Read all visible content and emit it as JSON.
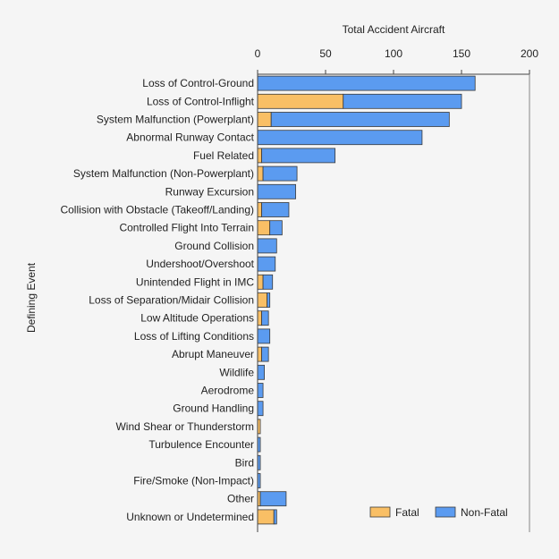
{
  "chart_data": {
    "type": "bar",
    "orientation": "horizontal",
    "stacked": true,
    "xlabel": "Total Accident Aircraft",
    "ylabel": "Defining Event",
    "xlim": [
      0,
      200
    ],
    "xticks": [
      0,
      50,
      100,
      150,
      200
    ],
    "x_axis_position": "top",
    "grid": false,
    "legend_position": "bottom-right",
    "categories": [
      "Loss of Control-Ground",
      "Loss of Control-Inflight",
      "System Malfunction (Powerplant)",
      "Abnormal Runway Contact",
      "Fuel Related",
      "System Malfunction (Non-Powerplant)",
      "Runway Excursion",
      "Collision with Obstacle (Takeoff/Landing)",
      "Controlled Flight Into Terrain",
      "Ground Collision",
      "Undershoot/Overshoot",
      "Unintended Flight in IMC",
      "Loss of Separation/Midair Collision",
      "Low Altitude Operations",
      "Loss of Lifting Conditions",
      "Abrupt Maneuver",
      "Wildlife",
      "Aerodrome",
      "Ground Handling",
      "Wind Shear or Thunderstorm",
      "Turbulence Encounter",
      "Bird",
      "Fire/Smoke (Non-Impact)",
      "Other",
      "Unknown or Undetermined"
    ],
    "series": [
      {
        "name": "Fatal",
        "color": "#f9bf65",
        "values": [
          0,
          63,
          10,
          0,
          3,
          4,
          0,
          3,
          9,
          0,
          0,
          4,
          7,
          3,
          0,
          3,
          0,
          0,
          0,
          2,
          0,
          0,
          0,
          2,
          12
        ]
      },
      {
        "name": "Non-Fatal",
        "color": "#5b9bf0",
        "values": [
          160,
          87,
          131,
          121,
          54,
          25,
          28,
          20,
          9,
          14,
          13,
          7,
          2,
          5,
          9,
          5,
          5,
          4,
          4,
          0,
          2,
          2,
          2,
          19,
          2
        ]
      }
    ]
  }
}
